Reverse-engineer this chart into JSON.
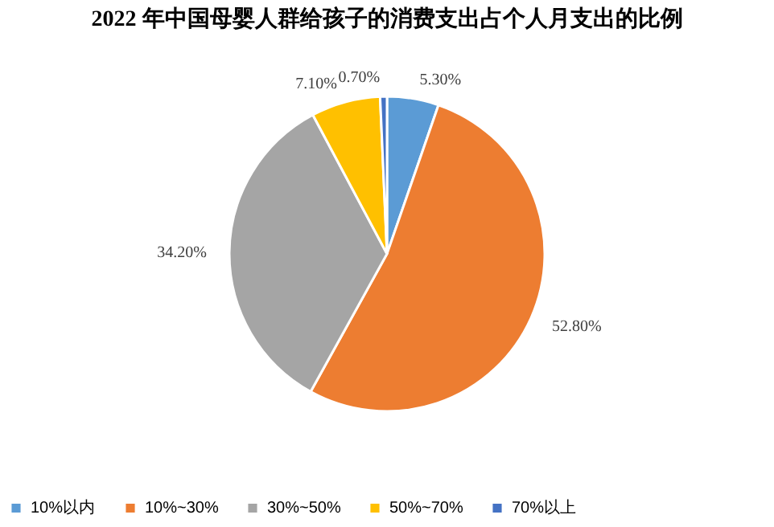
{
  "chart_data": {
    "type": "pie",
    "title": "2022 年中国母婴人群给孩子的消费支出占个人月支出的比例",
    "categories": [
      "10%以内",
      "10%~30%",
      "30%~50%",
      "50%~70%",
      "70%以上"
    ],
    "values": [
      5.3,
      52.8,
      34.2,
      7.1,
      0.7
    ],
    "value_labels": [
      "5.30%",
      "52.80%",
      "34.20%",
      "7.10%",
      "0.70%"
    ],
    "colors": [
      "#5b9bd5",
      "#ed7d31",
      "#a5a5a5",
      "#ffc000",
      "#4472c4"
    ],
    "legend": "bottom"
  }
}
